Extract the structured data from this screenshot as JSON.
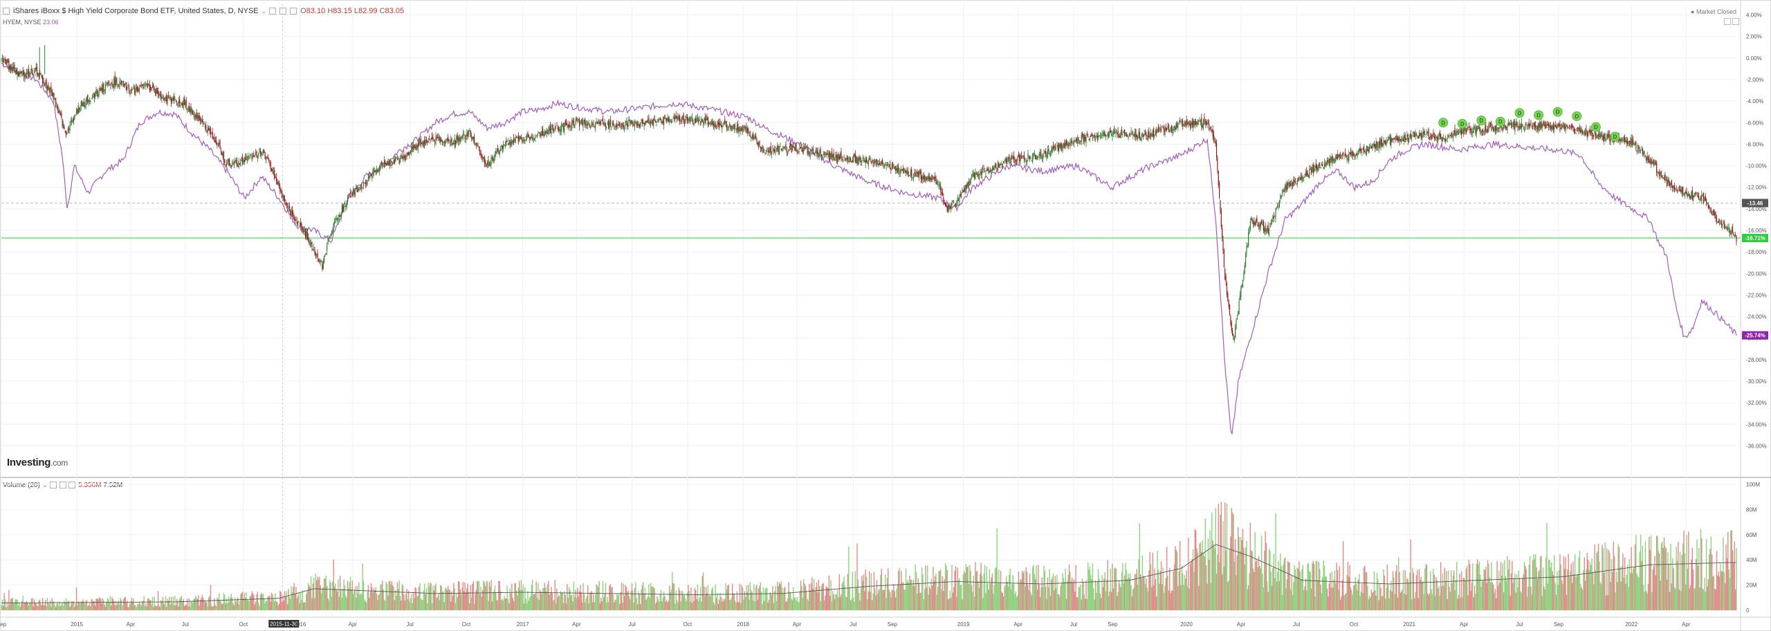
{
  "header": {
    "title": "iShares iBoxx $ High Yield Corporate Bond ETF, United States, D, NYSE",
    "open_label": "O",
    "open": "83.10",
    "high_label": "H",
    "high": "83.15",
    "low_label": "L",
    "low": "82.99",
    "close_label": "C",
    "close": "83.05",
    "market_status": "Market Closed"
  },
  "compare": {
    "label": "HYEM, NYSE",
    "value": "23.06"
  },
  "volume_header": {
    "label": "Volume (20)",
    "value1": "5.356M",
    "value2": "7.52M"
  },
  "logo": {
    "name": "Investing",
    "suffix": ".com"
  },
  "colors": {
    "up": "#2e7d32",
    "down": "#8b1a1a",
    "compare": "#a05fb5",
    "baseline": "#2ecc40",
    "dividend": "#7dd35b",
    "vol_up": "#8fd17f",
    "vol_down": "#e08a8a",
    "vol_ma": "#555555"
  },
  "chart_data": {
    "type": "line",
    "main_axis": {
      "ticks": [
        "4.00%",
        "2.00%",
        "0.00%",
        "-2.00%",
        "-4.00%",
        "-6.00%",
        "-8.00%",
        "-10.00%",
        "-12.00%",
        "-14.00%",
        "-16.00%",
        "-18.00%",
        "-20.00%",
        "-22.00%",
        "-24.00%",
        "-26.00%",
        "-28.00%",
        "-30.00%",
        "-32.00%",
        "-34.00%",
        "-36.00%"
      ],
      "ylim": [
        -37,
        5
      ]
    },
    "value_badges": [
      {
        "text": "-13.46",
        "value": -13.46,
        "color": "#555555"
      },
      {
        "text": "-16.71%",
        "value": -16.71,
        "color": "#2ecc40"
      },
      {
        "text": "-25.74%",
        "value": -25.74,
        "color": "#8e24aa"
      }
    ],
    "x_labels": [
      {
        "text": "Sep",
        "t": 0
      },
      {
        "text": "2015",
        "t": 0.0435
      },
      {
        "text": "Apr",
        "t": 0.0745
      },
      {
        "text": "Jul",
        "t": 0.106
      },
      {
        "text": "Oct",
        "t": 0.1395
      },
      {
        "text": "2015-11-30",
        "t": 0.16,
        "highlight": true
      },
      {
        "text": "2016",
        "t": 0.172
      },
      {
        "text": "Apr",
        "t": 0.2025
      },
      {
        "text": "Jul",
        "t": 0.2355
      },
      {
        "text": "Oct",
        "t": 0.268
      },
      {
        "text": "2017",
        "t": 0.3005
      },
      {
        "text": "Apr",
        "t": 0.3315
      },
      {
        "text": "Jul",
        "t": 0.3635
      },
      {
        "text": "Oct",
        "t": 0.3955
      },
      {
        "text": "2018",
        "t": 0.4275
      },
      {
        "text": "Apr",
        "t": 0.4585
      },
      {
        "text": "Jul",
        "t": 0.491
      },
      {
        "text": "Sep",
        "t": 0.5135
      },
      {
        "text": "2019",
        "t": 0.5545
      },
      {
        "text": "Apr",
        "t": 0.586
      },
      {
        "text": "Jul",
        "t": 0.618
      },
      {
        "text": "Sep",
        "t": 0.6405
      },
      {
        "text": "2020",
        "t": 0.683
      },
      {
        "text": "Apr",
        "t": 0.7145
      },
      {
        "text": "Jul",
        "t": 0.7465
      },
      {
        "text": "Oct",
        "t": 0.7795
      },
      {
        "text": "2021",
        "t": 0.8115
      },
      {
        "text": "Apr",
        "t": 0.843
      },
      {
        "text": "Jul",
        "t": 0.875
      },
      {
        "text": "Sep",
        "t": 0.8975
      },
      {
        "text": "2022",
        "t": 0.9395
      },
      {
        "text": "Apr",
        "t": 0.971
      }
    ],
    "series": [
      {
        "name": "iShares iBoxx $ High Yield Corporate Bond ETF",
        "style": "candles",
        "points": [
          [
            0,
            0
          ],
          [
            0.01,
            -1.5
          ],
          [
            0.02,
            -1.2
          ],
          [
            0.03,
            -3.5
          ],
          [
            0.037,
            -7
          ],
          [
            0.045,
            -4.5
          ],
          [
            0.055,
            -3.2
          ],
          [
            0.065,
            -2.2
          ],
          [
            0.075,
            -3
          ],
          [
            0.085,
            -2.6
          ],
          [
            0.095,
            -3.8
          ],
          [
            0.105,
            -4.2
          ],
          [
            0.115,
            -5.8
          ],
          [
            0.125,
            -8
          ],
          [
            0.13,
            -10
          ],
          [
            0.14,
            -9.5
          ],
          [
            0.15,
            -8.6
          ],
          [
            0.155,
            -10
          ],
          [
            0.165,
            -14
          ],
          [
            0.172,
            -15.5
          ],
          [
            0.178,
            -17
          ],
          [
            0.185,
            -19.3
          ],
          [
            0.19,
            -16
          ],
          [
            0.2,
            -13
          ],
          [
            0.21,
            -11.5
          ],
          [
            0.22,
            -9.8
          ],
          [
            0.23,
            -9.5
          ],
          [
            0.24,
            -8
          ],
          [
            0.25,
            -7.5
          ],
          [
            0.26,
            -7.8
          ],
          [
            0.27,
            -7
          ],
          [
            0.28,
            -10
          ],
          [
            0.29,
            -8
          ],
          [
            0.3,
            -7.5
          ],
          [
            0.31,
            -7
          ],
          [
            0.33,
            -6
          ],
          [
            0.35,
            -6.2
          ],
          [
            0.37,
            -6
          ],
          [
            0.39,
            -5.6
          ],
          [
            0.41,
            -6
          ],
          [
            0.43,
            -6.8
          ],
          [
            0.44,
            -8.5
          ],
          [
            0.46,
            -8.4
          ],
          [
            0.48,
            -9.2
          ],
          [
            0.5,
            -9.5
          ],
          [
            0.52,
            -10.5
          ],
          [
            0.54,
            -11.5
          ],
          [
            0.545,
            -14
          ],
          [
            0.55,
            -13.5
          ],
          [
            0.56,
            -11
          ],
          [
            0.58,
            -9.5
          ],
          [
            0.6,
            -9
          ],
          [
            0.62,
            -7.5
          ],
          [
            0.64,
            -7
          ],
          [
            0.66,
            -7.2
          ],
          [
            0.68,
            -6.2
          ],
          [
            0.695,
            -6
          ],
          [
            0.7,
            -8
          ],
          [
            0.705,
            -20
          ],
          [
            0.71,
            -26.5
          ],
          [
            0.715,
            -21
          ],
          [
            0.72,
            -15
          ],
          [
            0.73,
            -16
          ],
          [
            0.74,
            -12
          ],
          [
            0.75,
            -11
          ],
          [
            0.76,
            -10
          ],
          [
            0.77,
            -9.2
          ],
          [
            0.78,
            -9
          ],
          [
            0.79,
            -8.2
          ],
          [
            0.8,
            -7.6
          ],
          [
            0.81,
            -7.4
          ],
          [
            0.82,
            -7
          ],
          [
            0.83,
            -7.5
          ],
          [
            0.84,
            -6.8
          ],
          [
            0.86,
            -6.5
          ],
          [
            0.88,
            -6.2
          ],
          [
            0.9,
            -6.4
          ],
          [
            0.92,
            -7.2
          ],
          [
            0.94,
            -7.8
          ],
          [
            0.95,
            -9.5
          ],
          [
            0.96,
            -11.5
          ],
          [
            0.97,
            -12.5
          ],
          [
            0.98,
            -13
          ],
          [
            0.99,
            -15
          ],
          [
            1,
            -16.7
          ]
        ]
      },
      {
        "name": "HYEM",
        "style": "line",
        "points": [
          [
            0,
            -0.5
          ],
          [
            0.02,
            -2
          ],
          [
            0.03,
            -4
          ],
          [
            0.035,
            -9
          ],
          [
            0.038,
            -14
          ],
          [
            0.042,
            -10
          ],
          [
            0.05,
            -12.5
          ],
          [
            0.06,
            -10.5
          ],
          [
            0.07,
            -9.5
          ],
          [
            0.08,
            -6
          ],
          [
            0.09,
            -5
          ],
          [
            0.1,
            -5.2
          ],
          [
            0.11,
            -7
          ],
          [
            0.12,
            -8.5
          ],
          [
            0.13,
            -10.5
          ],
          [
            0.14,
            -13
          ],
          [
            0.15,
            -11
          ],
          [
            0.16,
            -13
          ],
          [
            0.17,
            -15.5
          ],
          [
            0.18,
            -16
          ],
          [
            0.19,
            -17
          ],
          [
            0.2,
            -13
          ],
          [
            0.21,
            -11
          ],
          [
            0.22,
            -10
          ],
          [
            0.23,
            -8.5
          ],
          [
            0.24,
            -7.5
          ],
          [
            0.25,
            -6
          ],
          [
            0.26,
            -5.2
          ],
          [
            0.27,
            -5
          ],
          [
            0.28,
            -6.5
          ],
          [
            0.29,
            -6
          ],
          [
            0.3,
            -5
          ],
          [
            0.31,
            -4.8
          ],
          [
            0.32,
            -4.2
          ],
          [
            0.33,
            -4.5
          ],
          [
            0.35,
            -5
          ],
          [
            0.37,
            -4.6
          ],
          [
            0.39,
            -4.2
          ],
          [
            0.41,
            -4.8
          ],
          [
            0.43,
            -5.5
          ],
          [
            0.44,
            -6.5
          ],
          [
            0.46,
            -8
          ],
          [
            0.48,
            -10
          ],
          [
            0.5,
            -11.5
          ],
          [
            0.52,
            -12.5
          ],
          [
            0.54,
            -13
          ],
          [
            0.55,
            -14
          ],
          [
            0.56,
            -12
          ],
          [
            0.58,
            -10
          ],
          [
            0.6,
            -10.5
          ],
          [
            0.62,
            -10
          ],
          [
            0.64,
            -12
          ],
          [
            0.66,
            -10.2
          ],
          [
            0.68,
            -9
          ],
          [
            0.695,
            -7.5
          ],
          [
            0.7,
            -15
          ],
          [
            0.705,
            -28
          ],
          [
            0.709,
            -35.5
          ],
          [
            0.713,
            -30
          ],
          [
            0.718,
            -27
          ],
          [
            0.725,
            -23
          ],
          [
            0.73,
            -20
          ],
          [
            0.74,
            -15
          ],
          [
            0.75,
            -13.5
          ],
          [
            0.76,
            -11.5
          ],
          [
            0.77,
            -10.5
          ],
          [
            0.78,
            -12
          ],
          [
            0.79,
            -11.5
          ],
          [
            0.8,
            -9.5
          ],
          [
            0.81,
            -8.5
          ],
          [
            0.82,
            -8
          ],
          [
            0.84,
            -8.5
          ],
          [
            0.86,
            -8
          ],
          [
            0.88,
            -8.3
          ],
          [
            0.9,
            -8.6
          ],
          [
            0.91,
            -9
          ],
          [
            0.92,
            -11.5
          ],
          [
            0.93,
            -13
          ],
          [
            0.94,
            -14
          ],
          [
            0.95,
            -15
          ],
          [
            0.955,
            -17
          ],
          [
            0.96,
            -18.5
          ],
          [
            0.965,
            -23
          ],
          [
            0.97,
            -26
          ],
          [
            0.975,
            -25
          ],
          [
            0.98,
            -22.5
          ],
          [
            0.99,
            -24
          ],
          [
            1,
            -25.7
          ]
        ]
      }
    ],
    "dividend_markers": {
      "label": "D",
      "points": [
        [
          0.831,
          -6.0
        ],
        [
          0.842,
          -6.1
        ],
        [
          0.853,
          -5.8
        ],
        [
          0.864,
          -5.9
        ],
        [
          0.875,
          -5.1
        ],
        [
          0.886,
          -5.3
        ],
        [
          0.897,
          -5.0
        ],
        [
          0.908,
          -5.4
        ],
        [
          0.919,
          -6.4
        ],
        [
          0.93,
          -7.3
        ]
      ]
    },
    "volume": {
      "ticks": [
        "100M",
        "80M",
        "60M",
        "40M",
        "20M",
        "0"
      ],
      "ylim": [
        0,
        100
      ],
      "unit": "M",
      "level_profile": [
        [
          0,
          6
        ],
        [
          0.1,
          7
        ],
        [
          0.16,
          10
        ],
        [
          0.18,
          18
        ],
        [
          0.25,
          14
        ],
        [
          0.3,
          15
        ],
        [
          0.4,
          13
        ],
        [
          0.45,
          14
        ],
        [
          0.5,
          20
        ],
        [
          0.55,
          24
        ],
        [
          0.6,
          22
        ],
        [
          0.65,
          25
        ],
        [
          0.68,
          35
        ],
        [
          0.7,
          55
        ],
        [
          0.72,
          45
        ],
        [
          0.75,
          25
        ],
        [
          0.8,
          22
        ],
        [
          0.9,
          28
        ],
        [
          0.95,
          38
        ],
        [
          1,
          40
        ]
      ]
    }
  }
}
